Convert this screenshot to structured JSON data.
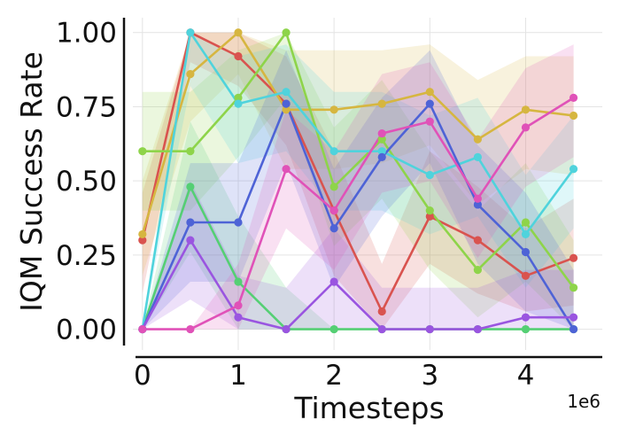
{
  "chart_data": {
    "type": "line",
    "xlabel": "Timesteps",
    "ylabel": "IQM Success Rate",
    "x_multiplier": "1e6",
    "xlim": [
      -0.1,
      4.8
    ],
    "ylim": [
      -0.07,
      1.05
    ],
    "xticks": [
      0,
      1,
      2,
      3,
      4
    ],
    "yticks": [
      0.0,
      0.25,
      0.5,
      0.75,
      1.0
    ],
    "xtick_labels": [
      "0",
      "1",
      "2",
      "3",
      "4"
    ],
    "ytick_labels": [
      "0.00",
      "0.25",
      "0.50",
      "0.75",
      "1.00"
    ],
    "grid": true,
    "x": [
      0.0,
      0.5,
      1.0,
      1.5,
      2.0,
      2.5,
      3.0,
      3.5,
      4.0,
      4.5
    ],
    "series": [
      {
        "color": "#d9534f",
        "values": [
          0.3,
          1.0,
          0.92,
          0.76,
          0.4,
          0.06,
          0.38,
          0.3,
          0.18,
          0.24
        ],
        "lower": [
          0.12,
          0.9,
          0.82,
          0.62,
          0.18,
          0.0,
          0.22,
          0.12,
          0.06,
          0.08
        ],
        "upper": [
          0.46,
          1.0,
          1.0,
          0.92,
          0.6,
          0.22,
          0.6,
          0.48,
          0.34,
          0.44
        ]
      },
      {
        "color": "#d6b640",
        "values": [
          0.32,
          0.86,
          1.0,
          0.74,
          0.74,
          0.76,
          0.8,
          0.64,
          0.74,
          0.72
        ],
        "lower": [
          0.18,
          0.7,
          0.86,
          0.54,
          0.54,
          0.56,
          0.62,
          0.42,
          0.54,
          0.52
        ],
        "upper": [
          0.5,
          1.0,
          1.0,
          0.94,
          0.94,
          0.94,
          0.96,
          0.84,
          0.92,
          0.92
        ]
      },
      {
        "color": "#8ed44a",
        "values": [
          0.6,
          0.6,
          0.78,
          1.0,
          0.48,
          0.64,
          0.4,
          0.2,
          0.36,
          0.14
        ],
        "lower": [
          0.4,
          0.4,
          0.58,
          0.78,
          0.28,
          0.44,
          0.2,
          0.04,
          0.16,
          0.0
        ],
        "upper": [
          0.8,
          0.8,
          0.94,
          1.0,
          0.68,
          0.84,
          0.6,
          0.4,
          0.56,
          0.3
        ]
      },
      {
        "color": "#55cf74",
        "values": [
          0.0,
          0.48,
          0.16,
          0.0,
          0.0,
          0.0,
          0.0,
          0.0,
          0.0,
          0.0
        ],
        "lower": [
          0.0,
          0.26,
          0.0,
          0.0,
          0.0,
          0.0,
          0.0,
          0.0,
          0.0,
          0.0
        ],
        "upper": [
          0.0,
          0.7,
          0.38,
          0.14,
          0.0,
          0.0,
          0.0,
          0.0,
          0.0,
          0.0
        ]
      },
      {
        "color": "#4fd3dc",
        "values": [
          0.0,
          1.0,
          0.76,
          0.8,
          0.6,
          0.6,
          0.52,
          0.58,
          0.32,
          0.54
        ],
        "lower": [
          0.0,
          0.82,
          0.56,
          0.6,
          0.4,
          0.4,
          0.32,
          0.38,
          0.14,
          0.34
        ],
        "upper": [
          0.0,
          1.0,
          0.92,
          0.96,
          0.8,
          0.8,
          0.72,
          0.78,
          0.52,
          0.72
        ]
      },
      {
        "color": "#4e63d6",
        "values": [
          0.0,
          0.36,
          0.36,
          0.76,
          0.34,
          0.58,
          0.76,
          0.42,
          0.26,
          0.0
        ],
        "lower": [
          0.0,
          0.16,
          0.16,
          0.56,
          0.14,
          0.38,
          0.56,
          0.22,
          0.06,
          0.0
        ],
        "upper": [
          0.0,
          0.56,
          0.56,
          0.94,
          0.54,
          0.78,
          0.94,
          0.62,
          0.46,
          0.2
        ]
      },
      {
        "color": "#9a55e0",
        "values": [
          0.0,
          0.3,
          0.04,
          0.0,
          0.16,
          0.0,
          0.0,
          0.0,
          0.04,
          0.04
        ],
        "lower": [
          0.0,
          0.1,
          0.0,
          0.0,
          0.0,
          0.0,
          0.0,
          0.0,
          0.0,
          0.0
        ],
        "upper": [
          0.0,
          0.5,
          0.18,
          0.14,
          0.34,
          0.14,
          0.14,
          0.14,
          0.2,
          0.2
        ]
      },
      {
        "color": "#e052b8",
        "values": [
          0.0,
          0.0,
          0.08,
          0.54,
          0.4,
          0.66,
          0.7,
          0.44,
          0.68,
          0.78
        ],
        "lower": [
          0.0,
          0.0,
          0.0,
          0.34,
          0.2,
          0.46,
          0.5,
          0.24,
          0.48,
          0.58
        ],
        "upper": [
          0.0,
          0.0,
          0.22,
          0.74,
          0.6,
          0.86,
          0.9,
          0.64,
          0.88,
          0.96
        ]
      }
    ]
  }
}
